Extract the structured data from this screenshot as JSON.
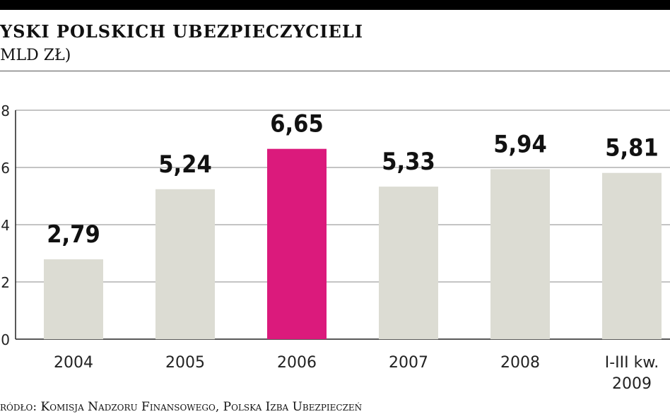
{
  "header": {
    "title": "YSKI POLSKICH UBEZPIECZYCIELI",
    "subtitle": "MLD ZŁ)"
  },
  "chart_data": {
    "type": "bar",
    "title": "YSKI POLSKICH UBEZPIECZYCIELI",
    "ylabel": "MLD ZŁ)",
    "xlabel": "",
    "categories": [
      "2004",
      "2005",
      "2006",
      "2007",
      "2008",
      "I-III kw. 2009"
    ],
    "values": [
      2.79,
      5.24,
      6.65,
      5.33,
      5.94,
      5.81
    ],
    "value_labels": [
      "2,79",
      "5,24",
      "6,65",
      "5,33",
      "5,94",
      "5,81"
    ],
    "yticks": [
      "0",
      "2",
      "4",
      "6",
      "8"
    ],
    "ylim": [
      0,
      8
    ],
    "grid": true,
    "highlight_index": 2,
    "colors": {
      "bar": "#dcdcd3",
      "highlight": "#db1a7c",
      "grid": "#8a8a8a",
      "axis": "#222222"
    }
  },
  "footer": {
    "source": "ródło: Komisja Nadzoru Finansowego, Polska Izba Ubezpieczeń"
  }
}
